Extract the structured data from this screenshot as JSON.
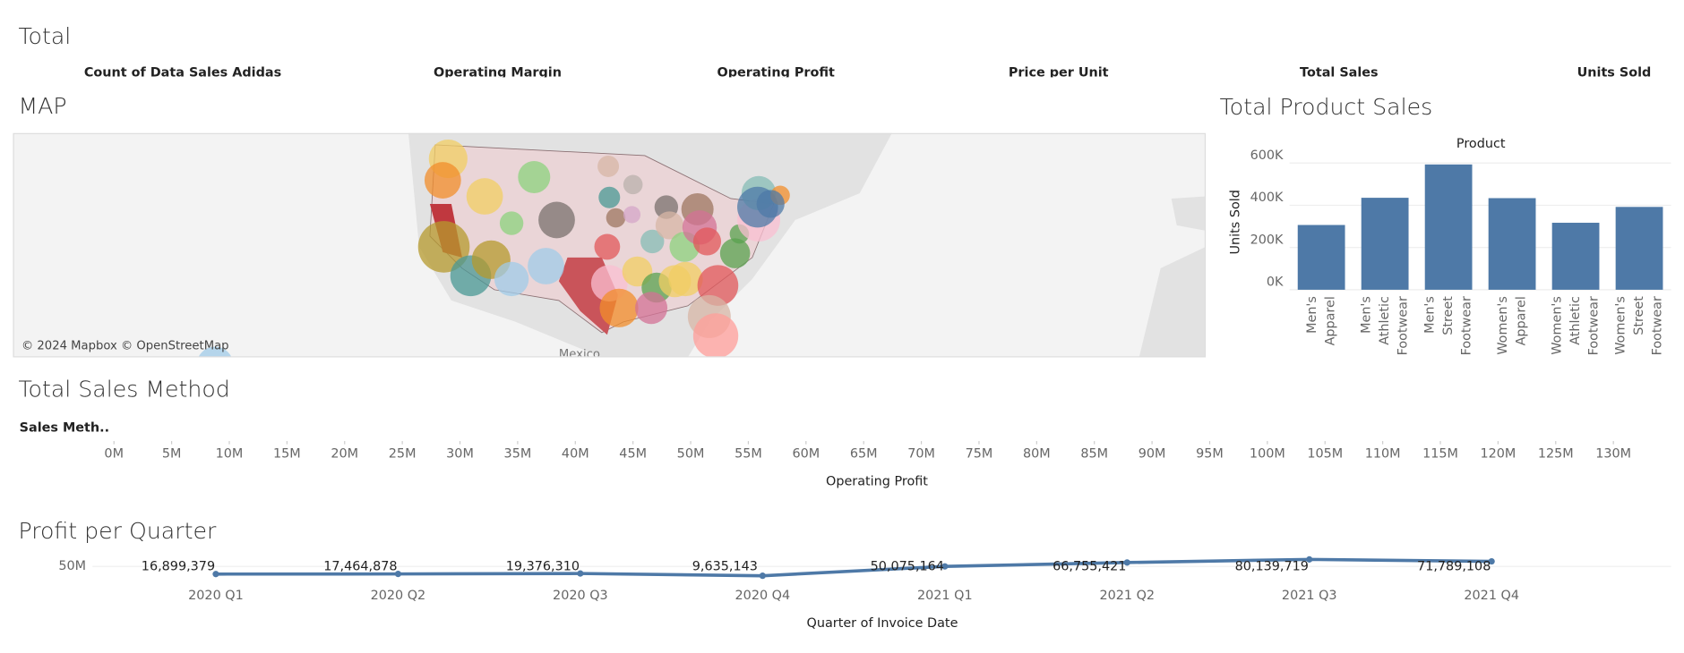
{
  "total": {
    "title": "Total",
    "kpis": [
      "Count of Data Sales Adidas",
      "Operating Margin",
      "Operating Profit",
      "Price per Unit",
      "Total Sales",
      "Units Sold"
    ]
  },
  "map": {
    "title": "MAP",
    "attribution": "© 2024 Mapbox © OpenStreetMap",
    "place": "Mexico"
  },
  "chart_data": [
    {
      "type": "bar",
      "title": "Total Product Sales",
      "column_header": "Product",
      "y_label": "Units Sold",
      "color": "#4e79a7",
      "categories": [
        "Men's Apparel",
        "Men's Athletic Footwear",
        "Men's Street Footwear",
        "Women's Apparel",
        "Women's Athletic Footwear",
        "Women's Street Footwear"
      ],
      "values": [
        306683,
        435526,
        593320,
        433827,
        317236,
        392269
      ],
      "ylim": [
        0,
        620000
      ],
      "yticks": [
        {
          "value": 0,
          "label": "0K"
        },
        {
          "value": 200000,
          "label": "200K"
        },
        {
          "value": 400000,
          "label": "400K"
        },
        {
          "value": 600000,
          "label": "600K"
        }
      ]
    },
    {
      "type": "axis",
      "title": "Total Sales Method",
      "row_header": "Sales Meth..",
      "x_label": "Operating Profit",
      "xlim": [
        0,
        135000000
      ],
      "xticks": [
        {
          "value": 0,
          "label": "0M"
        },
        {
          "value": 5000000,
          "label": "5M"
        },
        {
          "value": 10000000,
          "label": "10M"
        },
        {
          "value": 15000000,
          "label": "15M"
        },
        {
          "value": 20000000,
          "label": "20M"
        },
        {
          "value": 25000000,
          "label": "25M"
        },
        {
          "value": 30000000,
          "label": "30M"
        },
        {
          "value": 35000000,
          "label": "35M"
        },
        {
          "value": 40000000,
          "label": "40M"
        },
        {
          "value": 45000000,
          "label": "45M"
        },
        {
          "value": 50000000,
          "label": "50M"
        },
        {
          "value": 55000000,
          "label": "55M"
        },
        {
          "value": 60000000,
          "label": "60M"
        },
        {
          "value": 65000000,
          "label": "65M"
        },
        {
          "value": 70000000,
          "label": "70M"
        },
        {
          "value": 75000000,
          "label": "75M"
        },
        {
          "value": 80000000,
          "label": "80M"
        },
        {
          "value": 85000000,
          "label": "85M"
        },
        {
          "value": 90000000,
          "label": "90M"
        },
        {
          "value": 95000000,
          "label": "95M"
        },
        {
          "value": 100000000,
          "label": "100M"
        },
        {
          "value": 105000000,
          "label": "105M"
        },
        {
          "value": 110000000,
          "label": "110M"
        },
        {
          "value": 115000000,
          "label": "115M"
        },
        {
          "value": 120000000,
          "label": "120M"
        },
        {
          "value": 125000000,
          "label": "125M"
        },
        {
          "value": 130000000,
          "label": "130M"
        }
      ]
    },
    {
      "type": "line",
      "title": "Profit per Quarter",
      "x_label": "Quarter of Invoice Date",
      "color": "#4e79a7",
      "categories": [
        "2020 Q1",
        "2020 Q2",
        "2020 Q3",
        "2020 Q4",
        "2021 Q1",
        "2021 Q2",
        "2021 Q3",
        "2021 Q4"
      ],
      "values": [
        16899379,
        17464878,
        19376310,
        9635143,
        50075164,
        66755421,
        80139719,
        71789108
      ],
      "value_labels": [
        "16,899,379",
        "17,464,878",
        "19,376,310",
        "9,635,143",
        "50,075,164",
        "66,755,421",
        "80,139,719",
        "71,789,108"
      ],
      "ylim": [
        0,
        100000000
      ],
      "yticks": [
        {
          "value": 50000000,
          "label": "50M"
        }
      ]
    }
  ]
}
